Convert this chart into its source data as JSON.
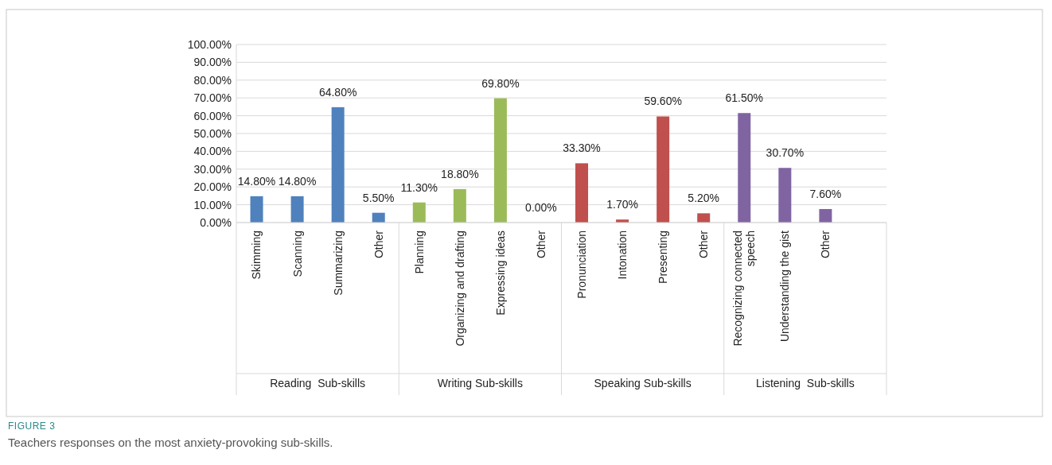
{
  "chart_data": {
    "type": "bar",
    "title": "FIGURE 3",
    "subtitle": "Teachers responses on the most anxiety-provoking sub-skills.",
    "categories": [
      "Skimming",
      "Scanning",
      "Summarizing",
      "Other",
      "Planning",
      "Organizing and drafting",
      "Expressing ideas",
      "Other",
      "Pronunciation",
      "Intonation",
      "Presenting",
      "Other",
      "Recognizing connected speech",
      "Understanding the gist",
      "Other",
      null
    ],
    "values": [
      14.8,
      14.8,
      64.8,
      5.5,
      11.3,
      18.8,
      69.8,
      0,
      33.3,
      1.7,
      59.6,
      5.2,
      61.5,
      30.7,
      7.6,
      null
    ],
    "value_labels": [
      "14.80%",
      "14.80%",
      "64.80%",
      "5.50%",
      "11.30%",
      "18.80%",
      "69.80%",
      "0.00%",
      "33.30%",
      "1.70%",
      "59.60%",
      "5.20%",
      "61.50%",
      "30.70%",
      "7.60%",
      null
    ],
    "colors": [
      "#4f81bd",
      "#4f81bd",
      "#4f81bd",
      "#4f81bd",
      "#9bbb59",
      "#9bbb59",
      "#9bbb59",
      "#9bbb59",
      "#c0504d",
      "#c0504d",
      "#c0504d",
      "#c0504d",
      "#8064a2",
      "#8064a2",
      "#8064a2",
      null
    ],
    "annotations": [
      "Reading  Sub-skills",
      "Writing Sub-skills",
      "Speaking Sub-skills",
      "Listening  Sub-skills"
    ],
    "ylim": [
      0,
      100
    ],
    "yticks": [
      {
        "value": 0,
        "label": "0.00%"
      },
      {
        "value": 10,
        "label": "10.00%"
      },
      {
        "value": 20,
        "label": "20.00%"
      },
      {
        "value": 30,
        "label": "30.00%"
      },
      {
        "value": 40,
        "label": "40.00%"
      },
      {
        "value": 50,
        "label": "50.00%"
      },
      {
        "value": 60,
        "label": "60.00%"
      },
      {
        "value": 70,
        "label": "70.00%"
      },
      {
        "value": 80,
        "label": "80.00%"
      },
      {
        "value": 90,
        "label": "90.00%"
      },
      {
        "value": 100,
        "label": "100.00%"
      }
    ],
    "grid": "y"
  }
}
